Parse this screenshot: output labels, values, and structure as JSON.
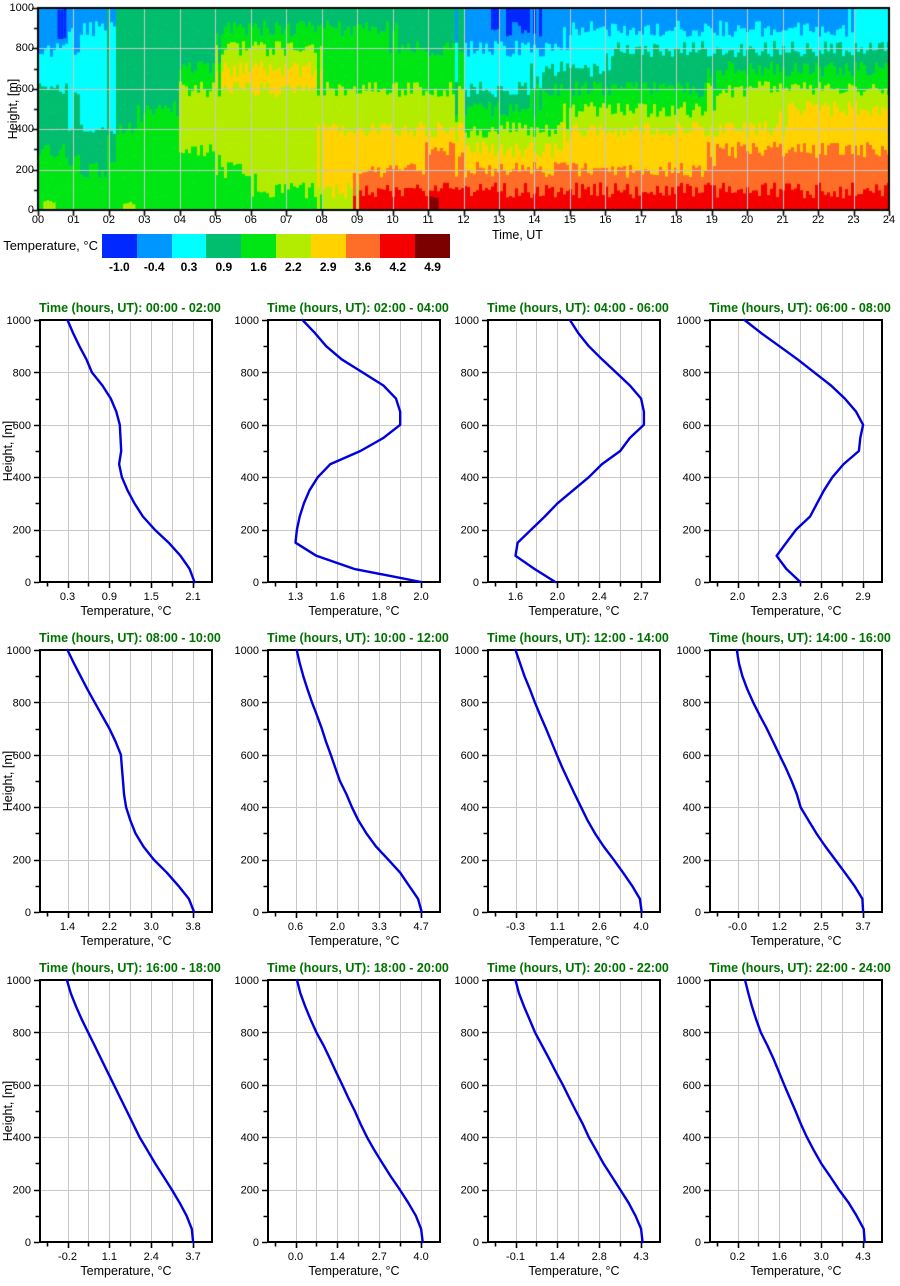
{
  "page_background": "#FFFFFF",
  "styles": {
    "curve_color": "#0000DF",
    "title_color": "#007200",
    "grid_color": "#C8C8C8",
    "frame_color": "#000000"
  },
  "profile_heights_m": [
    0,
    50,
    100,
    150,
    200,
    250,
    300,
    350,
    400,
    450,
    500,
    550,
    600,
    650,
    700,
    750,
    800,
    850,
    900,
    950,
    1000
  ],
  "chart_data": [
    {
      "type": "heatmap",
      "xlabel": "Time, UT",
      "ylabel": "Height, [m]",
      "xlim": [
        0,
        24
      ],
      "ylim": [
        0,
        1000
      ],
      "x_tick_labels": [
        "00",
        "01",
        "02",
        "03",
        "04",
        "05",
        "06",
        "07",
        "08",
        "09",
        "10",
        "11",
        "12",
        "13",
        "14",
        "15",
        "16",
        "17",
        "18",
        "19",
        "20",
        "21",
        "22",
        "23",
        "24"
      ],
      "y_ticks": [
        0,
        200,
        400,
        600,
        800,
        1000
      ],
      "grid_on": true,
      "colorbar_label": "Temperature, °C",
      "colorbar_tick_labels": [
        "-1.0",
        "-0.4",
        "0.3",
        "0.9",
        "1.6",
        "2.2",
        "2.9",
        "3.6",
        "4.2",
        "4.9"
      ],
      "bin_values": [
        -1.0,
        -0.4,
        0.3,
        0.9,
        1.6,
        2.2,
        2.9,
        3.6,
        4.2,
        4.9
      ],
      "palette": [
        "#0028FF",
        "#0096FF",
        "#00FFFF",
        "#00BE6E",
        "#00E614",
        "#B4EC00",
        "#FFD200",
        "#FF6E28",
        "#F50000",
        "#7D0000"
      ],
      "values_by_hour_bottom_up_100m": [
        [
          1.6,
          1.6,
          1.6,
          0.9,
          0.9,
          0.9,
          0.3,
          0.3,
          -0.4,
          -0.4
        ],
        [
          1.6,
          1.6,
          0.9,
          0.9,
          0.3,
          0.3,
          0.3,
          0.3,
          0.3,
          -0.4
        ],
        [
          1.6,
          1.6,
          1.6,
          1.6,
          0.9,
          0.9,
          0.9,
          0.9,
          0.9,
          0.9
        ],
        [
          1.6,
          1.6,
          1.6,
          1.6,
          1.6,
          0.9,
          0.9,
          0.9,
          0.9,
          0.9
        ],
        [
          1.6,
          1.6,
          1.6,
          2.2,
          2.2,
          2.2,
          1.6,
          0.9,
          0.9,
          0.9
        ],
        [
          1.6,
          1.6,
          2.2,
          2.2,
          2.2,
          2.2,
          2.9,
          2.2,
          1.6,
          0.9
        ],
        [
          1.6,
          2.2,
          2.2,
          2.2,
          2.2,
          2.2,
          2.9,
          2.2,
          1.6,
          0.9
        ],
        [
          1.6,
          2.2,
          2.2,
          2.2,
          2.2,
          2.2,
          2.9,
          2.2,
          1.6,
          0.9
        ],
        [
          2.2,
          2.9,
          2.9,
          2.9,
          2.2,
          2.2,
          1.6,
          1.6,
          1.6,
          0.9
        ],
        [
          4.2,
          3.6,
          2.9,
          2.9,
          2.2,
          2.2,
          1.6,
          1.6,
          1.6,
          0.9
        ],
        [
          4.2,
          3.6,
          2.9,
          2.9,
          2.2,
          2.2,
          1.6,
          1.6,
          0.9,
          0.9
        ],
        [
          4.2,
          3.6,
          3.6,
          2.9,
          2.2,
          2.2,
          1.6,
          1.6,
          0.9,
          0.9
        ],
        [
          4.2,
          3.6,
          2.9,
          2.2,
          1.6,
          0.9,
          0.3,
          0.3,
          -0.4,
          -0.4
        ],
        [
          4.2,
          3.6,
          2.9,
          2.2,
          1.6,
          0.9,
          0.3,
          0.3,
          -0.4,
          -1.0
        ],
        [
          4.2,
          3.6,
          2.9,
          2.2,
          1.6,
          1.6,
          0.9,
          0.3,
          -0.4,
          -0.4
        ],
        [
          4.2,
          3.6,
          2.9,
          2.9,
          2.2,
          1.6,
          0.9,
          0.3,
          0.3,
          -0.4
        ],
        [
          4.2,
          3.6,
          2.9,
          2.9,
          2.2,
          1.6,
          0.9,
          0.9,
          0.3,
          -0.4
        ],
        [
          4.2,
          3.6,
          2.9,
          2.9,
          2.2,
          1.6,
          0.9,
          0.9,
          0.3,
          -0.4
        ],
        [
          4.2,
          3.6,
          2.9,
          2.9,
          2.2,
          1.6,
          0.9,
          0.9,
          0.3,
          -0.4
        ],
        [
          4.2,
          3.6,
          3.6,
          2.9,
          2.2,
          2.2,
          1.6,
          0.9,
          0.3,
          -0.4
        ],
        [
          4.2,
          3.6,
          3.6,
          2.9,
          2.2,
          2.2,
          1.6,
          0.9,
          0.3,
          -0.4
        ],
        [
          4.2,
          3.6,
          3.6,
          2.9,
          2.9,
          2.2,
          1.6,
          0.9,
          0.3,
          -0.4
        ],
        [
          4.2,
          3.6,
          3.6,
          2.9,
          2.9,
          2.2,
          1.6,
          0.9,
          0.3,
          -0.4
        ],
        [
          4.2,
          3.6,
          3.6,
          2.9,
          2.9,
          2.2,
          1.6,
          0.9,
          0.3,
          0.3
        ]
      ],
      "hotspots": [
        {
          "t": [
            11.05,
            11.3
          ],
          "h": [
            5,
            65
          ],
          "value": 4.9
        },
        {
          "t": [
            0.55,
            0.8
          ],
          "h": [
            850,
            1000
          ],
          "value": -1.0
        },
        {
          "t": [
            0.15,
            0.5
          ],
          "h": [
            0,
            40
          ],
          "value": 2.2
        },
        {
          "t": [
            2.4,
            2.75
          ],
          "h": [
            0,
            35
          ],
          "value": 2.2
        }
      ]
    },
    {
      "type": "line",
      "title": "Time (hours, UT): 00:00 - 02:00",
      "xlabel": "Temperature, °C",
      "ylabel": "Height, [m]",
      "ylim": [
        0,
        1000
      ],
      "y_ticks": [
        0,
        200,
        400,
        600,
        800,
        1000
      ],
      "x_tick_labels": [
        "0.3",
        "0.9",
        "1.5",
        "2.1"
      ],
      "x": [
        2.12,
        2.05,
        1.92,
        1.75,
        1.55,
        1.38,
        1.26,
        1.16,
        1.08,
        1.04,
        1.07,
        1.06,
        1.05,
        1.0,
        0.92,
        0.8,
        0.65,
        0.57,
        0.47,
        0.38,
        0.3
      ]
    },
    {
      "type": "line",
      "title": "Time (hours, UT): 02:00 - 04:00",
      "xlabel": "Temperature, °C",
      "ylabel": "Height, [m]",
      "ylim": [
        0,
        1000
      ],
      "y_ticks": [
        0,
        200,
        400,
        600,
        800,
        1000
      ],
      "x_tick_labels": [
        "1.3",
        "1.6",
        "1.8",
        "2.0"
      ],
      "x": [
        2.0,
        1.68,
        1.45,
        1.3,
        1.31,
        1.33,
        1.36,
        1.4,
        1.46,
        1.55,
        1.71,
        1.82,
        1.9,
        1.9,
        1.88,
        1.82,
        1.72,
        1.62,
        1.52,
        1.44,
        1.35
      ]
    },
    {
      "type": "line",
      "title": "Time (hours, UT): 04:00 - 06:00",
      "xlabel": "Temperature, °C",
      "ylabel": "Height, [m]",
      "ylim": [
        0,
        1000
      ],
      "y_ticks": [
        0,
        200,
        400,
        600,
        800,
        1000
      ],
      "x_tick_labels": [
        "1.6",
        "2.0",
        "2.4",
        "2.7"
      ],
      "x": [
        1.98,
        1.78,
        1.6,
        1.62,
        1.75,
        1.88,
        2.0,
        2.15,
        2.3,
        2.42,
        2.55,
        2.62,
        2.72,
        2.72,
        2.7,
        2.62,
        2.52,
        2.42,
        2.3,
        2.2,
        2.12
      ]
    },
    {
      "type": "line",
      "title": "Time (hours, UT): 06:00 - 08:00",
      "xlabel": "Temperature, °C",
      "ylabel": "Height, [m]",
      "ylim": [
        0,
        1000
      ],
      "y_ticks": [
        0,
        200,
        400,
        600,
        800,
        1000
      ],
      "x_tick_labels": [
        "2.0",
        "2.3",
        "2.6",
        "2.9"
      ],
      "x": [
        2.45,
        2.35,
        2.28,
        2.35,
        2.42,
        2.52,
        2.57,
        2.62,
        2.68,
        2.76,
        2.87,
        2.88,
        2.9,
        2.85,
        2.77,
        2.67,
        2.55,
        2.43,
        2.3,
        2.17,
        2.05
      ]
    },
    {
      "type": "line",
      "title": "Time (hours, UT): 08:00 - 10:00",
      "xlabel": "Temperature, °C",
      "ylabel": "Height, [m]",
      "ylim": [
        0,
        1000
      ],
      "y_ticks": [
        0,
        200,
        400,
        600,
        800,
        1000
      ],
      "x_tick_labels": [
        "1.4",
        "2.2",
        "3.0",
        "3.8"
      ],
      "x": [
        3.82,
        3.72,
        3.52,
        3.3,
        3.05,
        2.85,
        2.7,
        2.6,
        2.52,
        2.48,
        2.46,
        2.44,
        2.42,
        2.32,
        2.2,
        2.06,
        1.92,
        1.78,
        1.65,
        1.52,
        1.4
      ]
    },
    {
      "type": "line",
      "title": "Time (hours, UT): 10:00 - 12:00",
      "xlabel": "Temperature, °C",
      "ylabel": "Height, [m]",
      "ylim": [
        0,
        1000
      ],
      "y_ticks": [
        0,
        200,
        400,
        600,
        800,
        1000
      ],
      "x_tick_labels": [
        "0.6",
        "2.0",
        "3.3",
        "4.7"
      ],
      "x": [
        4.72,
        4.6,
        4.3,
        4.0,
        3.6,
        3.2,
        2.9,
        2.65,
        2.45,
        2.28,
        2.08,
        1.93,
        1.78,
        1.62,
        1.48,
        1.32,
        1.15,
        1.0,
        0.86,
        0.74,
        0.64
      ]
    },
    {
      "type": "line",
      "title": "Time (hours, UT): 12:00 - 14:00",
      "xlabel": "Temperature, °C",
      "ylabel": "Height, [m]",
      "ylim": [
        0,
        1000
      ],
      "y_ticks": [
        0,
        200,
        400,
        600,
        800,
        1000
      ],
      "x_tick_labels": [
        "-0.3",
        "1.1",
        "2.6",
        "4.0"
      ],
      "x": [
        4.02,
        3.96,
        3.7,
        3.4,
        3.08,
        2.75,
        2.45,
        2.18,
        1.95,
        1.72,
        1.5,
        1.28,
        1.08,
        0.9,
        0.72,
        0.53,
        0.35,
        0.18,
        0.0,
        -0.15,
        -0.3
      ]
    },
    {
      "type": "line",
      "title": "Time (hours, UT): 14:00 - 16:00",
      "xlabel": "Temperature, °C",
      "ylabel": "Height, [m]",
      "ylim": [
        0,
        1000
      ],
      "y_ticks": [
        0,
        200,
        400,
        600,
        800,
        1000
      ],
      "x_tick_labels": [
        "-0.0",
        "1.2",
        "2.5",
        "3.7"
      ],
      "x": [
        3.7,
        3.68,
        3.45,
        3.18,
        2.9,
        2.62,
        2.35,
        2.1,
        1.86,
        1.74,
        1.58,
        1.4,
        1.2,
        1.02,
        0.84,
        0.64,
        0.45,
        0.28,
        0.14,
        0.04,
        -0.02
      ]
    },
    {
      "type": "line",
      "title": "Time (hours, UT): 16:00 - 18:00",
      "xlabel": "Temperature, °C",
      "ylabel": "Height, [m]",
      "ylim": [
        0,
        1000
      ],
      "y_ticks": [
        0,
        200,
        400,
        600,
        800,
        1000
      ],
      "x_tick_labels": [
        "-0.2",
        "1.1",
        "2.4",
        "3.7"
      ],
      "x": [
        3.7,
        3.66,
        3.5,
        3.28,
        3.04,
        2.78,
        2.52,
        2.28,
        2.04,
        1.84,
        1.64,
        1.44,
        1.24,
        1.04,
        0.84,
        0.64,
        0.44,
        0.24,
        0.06,
        -0.1,
        -0.22
      ]
    },
    {
      "type": "line",
      "title": "Time (hours, UT): 18:00 - 20:00",
      "xlabel": "Temperature, °C",
      "ylabel": "Height, [m]",
      "ylim": [
        0,
        1000
      ],
      "y_ticks": [
        0,
        200,
        400,
        600,
        800,
        1000
      ],
      "x_tick_labels": [
        "0.0",
        "1.4",
        "2.7",
        "4.0"
      ],
      "x": [
        4.05,
        4.0,
        3.84,
        3.6,
        3.34,
        3.06,
        2.8,
        2.55,
        2.32,
        2.12,
        1.94,
        1.74,
        1.55,
        1.35,
        1.15,
        0.94,
        0.7,
        0.5,
        0.32,
        0.16,
        0.05
      ]
    },
    {
      "type": "line",
      "title": "Time (hours, UT): 20:00 - 22:00",
      "xlabel": "Temperature, °C",
      "ylabel": "Height, [m]",
      "ylim": [
        0,
        1000
      ],
      "y_ticks": [
        0,
        200,
        400,
        600,
        800,
        1000
      ],
      "x_tick_labels": [
        "-0.1",
        "1.4",
        "2.8",
        "4.3"
      ],
      "x": [
        4.35,
        4.3,
        4.1,
        3.85,
        3.55,
        3.25,
        2.95,
        2.7,
        2.45,
        2.25,
        2.02,
        1.8,
        1.58,
        1.34,
        1.1,
        0.85,
        0.6,
        0.4,
        0.2,
        0.02,
        -0.1
      ]
    },
    {
      "type": "line",
      "title": "Time (hours, UT): 22:00 - 24:00",
      "xlabel": "Temperature, °C",
      "ylabel": "Height, [m]",
      "ylim": [
        0,
        1000
      ],
      "y_ticks": [
        0,
        200,
        400,
        600,
        800,
        1000
      ],
      "x_tick_labels": [
        "0.2",
        "1.6",
        "3.0",
        "4.3"
      ],
      "x": [
        4.35,
        4.32,
        4.1,
        3.85,
        3.55,
        3.28,
        3.0,
        2.75,
        2.52,
        2.32,
        2.14,
        1.95,
        1.76,
        1.58,
        1.4,
        1.2,
        0.98,
        0.82,
        0.68,
        0.56,
        0.45
      ]
    }
  ]
}
